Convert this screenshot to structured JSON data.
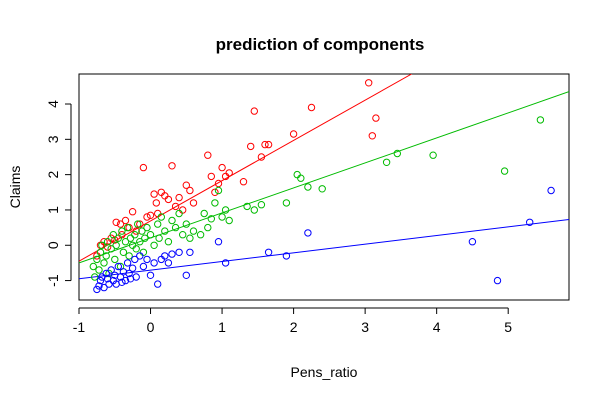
{
  "chart_data": {
    "type": "scatter",
    "title": "prediction of components",
    "xlabel": "Pens_ratio",
    "ylabel": "Claims",
    "xlim": [
      -1.0,
      5.85
    ],
    "ylim": [
      -1.55,
      4.85
    ],
    "xticks": [
      "-1",
      "0",
      "1",
      "2",
      "3",
      "4",
      "5"
    ],
    "xtick_values": [
      -1,
      0,
      1,
      2,
      3,
      4,
      5
    ],
    "yticks": [
      "-1",
      "0",
      "1",
      "2",
      "3",
      "4"
    ],
    "ytick_values": [
      -1,
      0,
      1,
      2,
      3,
      4
    ],
    "grid": false,
    "legend": "none",
    "series": [
      {
        "color": "#ff0000",
        "points": [
          [
            -0.75,
            -0.3
          ],
          [
            -0.7,
            0.0
          ],
          [
            -0.65,
            0.1
          ],
          [
            -0.6,
            -0.05
          ],
          [
            -0.55,
            0.2
          ],
          [
            -0.5,
            0.15
          ],
          [
            -0.48,
            0.65
          ],
          [
            -0.42,
            0.6
          ],
          [
            -0.4,
            0.3
          ],
          [
            -0.35,
            0.7
          ],
          [
            -0.3,
            0.5
          ],
          [
            -0.25,
            0.95
          ],
          [
            -0.2,
            0.4
          ],
          [
            -0.15,
            0.6
          ],
          [
            -0.1,
            2.2
          ],
          [
            -0.05,
            0.8
          ],
          [
            0.0,
            0.85
          ],
          [
            0.05,
            1.45
          ],
          [
            0.08,
            1.2
          ],
          [
            0.1,
            0.9
          ],
          [
            0.15,
            1.5
          ],
          [
            0.2,
            1.4
          ],
          [
            0.25,
            1.3
          ],
          [
            0.3,
            2.25
          ],
          [
            0.35,
            1.1
          ],
          [
            0.4,
            1.35
          ],
          [
            0.45,
            1.0
          ],
          [
            0.5,
            1.7
          ],
          [
            0.55,
            1.55
          ],
          [
            0.6,
            1.2
          ],
          [
            0.8,
            2.55
          ],
          [
            0.85,
            1.95
          ],
          [
            0.9,
            1.5
          ],
          [
            0.95,
            1.75
          ],
          [
            1.0,
            2.2
          ],
          [
            1.05,
            1.95
          ],
          [
            1.1,
            2.05
          ],
          [
            1.3,
            1.8
          ],
          [
            1.4,
            2.8
          ],
          [
            1.45,
            3.8
          ],
          [
            1.55,
            2.5
          ],
          [
            1.6,
            2.85
          ],
          [
            1.65,
            2.85
          ],
          [
            2.0,
            3.15
          ],
          [
            2.25,
            3.9
          ],
          [
            3.05,
            4.6
          ],
          [
            3.1,
            3.1
          ],
          [
            3.15,
            3.6
          ]
        ]
      },
      {
        "color": "#00bb00",
        "points": [
          [
            -0.8,
            -0.6
          ],
          [
            -0.78,
            -0.9
          ],
          [
            -0.75,
            -0.4
          ],
          [
            -0.72,
            -0.7
          ],
          [
            -0.7,
            -0.2
          ],
          [
            -0.68,
            0.0
          ],
          [
            -0.65,
            -0.5
          ],
          [
            -0.62,
            -0.3
          ],
          [
            -0.6,
            0.1
          ],
          [
            -0.58,
            -0.8
          ],
          [
            -0.55,
            -0.1
          ],
          [
            -0.52,
            0.3
          ],
          [
            -0.5,
            -0.4
          ],
          [
            -0.48,
            0.0
          ],
          [
            -0.45,
            0.2
          ],
          [
            -0.42,
            -0.6
          ],
          [
            -0.4,
            0.4
          ],
          [
            -0.38,
            -0.2
          ],
          [
            -0.35,
            0.1
          ],
          [
            -0.32,
            0.5
          ],
          [
            -0.3,
            -0.3
          ],
          [
            -0.28,
            0.2
          ],
          [
            -0.25,
            0.0
          ],
          [
            -0.22,
            0.3
          ],
          [
            -0.2,
            -0.1
          ],
          [
            -0.18,
            0.6
          ],
          [
            -0.15,
            0.1
          ],
          [
            -0.12,
            0.4
          ],
          [
            -0.1,
            -0.2
          ],
          [
            -0.08,
            0.2
          ],
          [
            -0.05,
            0.5
          ],
          [
            0.0,
            0.3
          ],
          [
            0.05,
            0.0
          ],
          [
            0.1,
            0.6
          ],
          [
            0.12,
            0.2
          ],
          [
            0.15,
            0.8
          ],
          [
            0.2,
            0.4
          ],
          [
            0.25,
            0.1
          ],
          [
            0.3,
            0.7
          ],
          [
            0.35,
            0.5
          ],
          [
            0.4,
            0.9
          ],
          [
            0.45,
            0.3
          ],
          [
            0.5,
            0.6
          ],
          [
            0.55,
            0.2
          ],
          [
            0.6,
            0.4
          ],
          [
            0.7,
            0.3
          ],
          [
            0.75,
            0.9
          ],
          [
            0.8,
            0.5
          ],
          [
            0.85,
            0.75
          ],
          [
            0.9,
            1.2
          ],
          [
            0.95,
            1.55
          ],
          [
            1.0,
            0.8
          ],
          [
            1.05,
            1.0
          ],
          [
            1.1,
            0.7
          ],
          [
            1.35,
            1.1
          ],
          [
            1.45,
            1.0
          ],
          [
            1.55,
            1.15
          ],
          [
            1.9,
            1.2
          ],
          [
            2.05,
            2.0
          ],
          [
            2.1,
            1.9
          ],
          [
            2.2,
            1.65
          ],
          [
            2.4,
            1.6
          ],
          [
            3.3,
            2.35
          ],
          [
            3.45,
            2.6
          ],
          [
            3.95,
            2.55
          ],
          [
            4.95,
            2.1
          ],
          [
            5.45,
            3.55
          ]
        ]
      },
      {
        "color": "#0000ff",
        "points": [
          [
            -0.75,
            -1.25
          ],
          [
            -0.72,
            -1.15
          ],
          [
            -0.7,
            -1.0
          ],
          [
            -0.68,
            -0.9
          ],
          [
            -0.65,
            -1.2
          ],
          [
            -0.62,
            -0.8
          ],
          [
            -0.6,
            -0.95
          ],
          [
            -0.58,
            -1.1
          ],
          [
            -0.55,
            -0.7
          ],
          [
            -0.52,
            -1.0
          ],
          [
            -0.5,
            -0.85
          ],
          [
            -0.48,
            -1.1
          ],
          [
            -0.45,
            -0.6
          ],
          [
            -0.42,
            -0.9
          ],
          [
            -0.4,
            -1.05
          ],
          [
            -0.38,
            -0.75
          ],
          [
            -0.35,
            -1.0
          ],
          [
            -0.32,
            -0.5
          ],
          [
            -0.3,
            -0.8
          ],
          [
            -0.28,
            -0.95
          ],
          [
            -0.25,
            -0.65
          ],
          [
            -0.22,
            -0.4
          ],
          [
            -0.2,
            -0.9
          ],
          [
            -0.15,
            -0.3
          ],
          [
            -0.1,
            -0.6
          ],
          [
            -0.05,
            -0.4
          ],
          [
            0.0,
            -0.85
          ],
          [
            0.05,
            -0.5
          ],
          [
            0.1,
            -1.1
          ],
          [
            0.15,
            -0.4
          ],
          [
            0.2,
            -0.3
          ],
          [
            0.25,
            -0.5
          ],
          [
            0.3,
            -0.25
          ],
          [
            0.4,
            -0.2
          ],
          [
            0.5,
            -0.85
          ],
          [
            0.55,
            -0.2
          ],
          [
            0.95,
            0.1
          ],
          [
            1.05,
            -0.5
          ],
          [
            1.65,
            -0.2
          ],
          [
            1.9,
            -0.3
          ],
          [
            2.2,
            0.35
          ],
          [
            4.5,
            0.1
          ],
          [
            4.85,
            -1.0
          ],
          [
            5.3,
            0.65
          ],
          [
            5.6,
            1.55
          ]
        ]
      }
    ],
    "lines": [
      {
        "color": "#ff0000",
        "x": [
          -1.0,
          3.65
        ],
        "y": [
          -0.45,
          4.85
        ]
      },
      {
        "color": "#00bb00",
        "x": [
          -1.0,
          5.85
        ],
        "y": [
          -0.5,
          4.35
        ]
      },
      {
        "color": "#0000ff",
        "x": [
          -1.0,
          5.85
        ],
        "y": [
          -0.95,
          0.73
        ]
      }
    ]
  }
}
